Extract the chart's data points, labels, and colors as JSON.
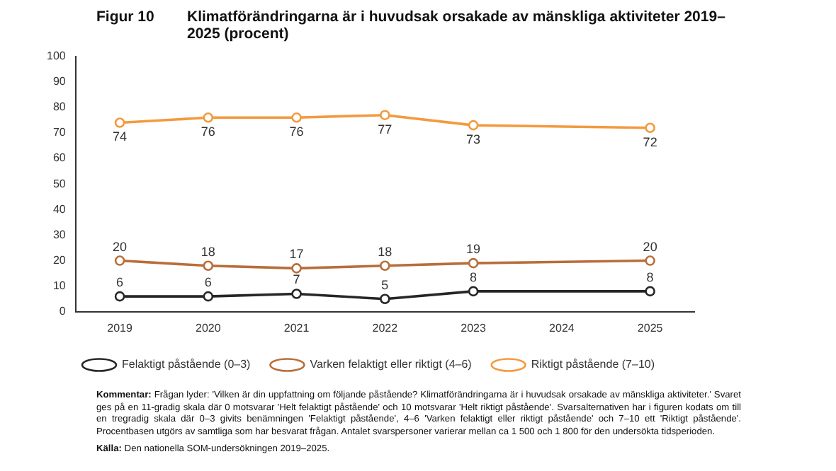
{
  "chart_data": {
    "type": "line",
    "title": "Figur 10",
    "subtitle": "Klimatförändringarna är i huvudsak orsakade av mänskliga aktiviteter 2019–2025 (procent)",
    "x": [
      2019,
      2020,
      2021,
      2022,
      2023,
      2025
    ],
    "xlim": [
      2018.5,
      2025.5
    ],
    "xticks": [
      2019,
      2020,
      2021,
      2022,
      2023,
      2024,
      2025
    ],
    "ylim": [
      0,
      100
    ],
    "yticks": [
      0,
      10,
      20,
      30,
      40,
      50,
      60,
      70,
      80,
      90,
      100
    ],
    "series": [
      {
        "name": "Felaktigt påstående (0–3)",
        "color": "#262626",
        "values": [
          6,
          6,
          7,
          5,
          8,
          8
        ]
      },
      {
        "name": "Varken felaktigt eller riktigt (4–6)",
        "color": "#b86e3a",
        "values": [
          20,
          18,
          17,
          18,
          19,
          20
        ]
      },
      {
        "name": "Riktigt påstående (7–10)",
        "color": "#f39a3e",
        "values": [
          74,
          76,
          76,
          77,
          73,
          72
        ]
      }
    ],
    "marker": "circle",
    "line_style": "solid",
    "grid": false,
    "legend": "bottom",
    "data_labels": true,
    "annotations": [
      "Kommentar: Frågan lyder: 'Vilken är din uppfattning om följande påstående? Klimatförändringarna är i huvudsak orsakade av mänskliga aktiviteter.' Svaret ges på en 11-gradig skala där 0 motsvarar 'Helt felaktigt påstående' och 10 motsvarar 'Helt riktigt påstående'. Svarsalternativen har i figuren kodats om till en tregradig skala där 0–3 givits benämningen 'Felaktigt påstående', 4–6 'Varken felaktigt eller riktigt påstående' och 7–10 ett 'Riktigt påstående'. Procentbasen utgörs av samtliga som har besvarat frågan. Antalet svarspersoner varierar mellan ca 1 500 och 1 800 för den undersökta tidsperioden.",
      "Källa: Den nationella SOM-undersökningen 2019–2025."
    ]
  }
}
